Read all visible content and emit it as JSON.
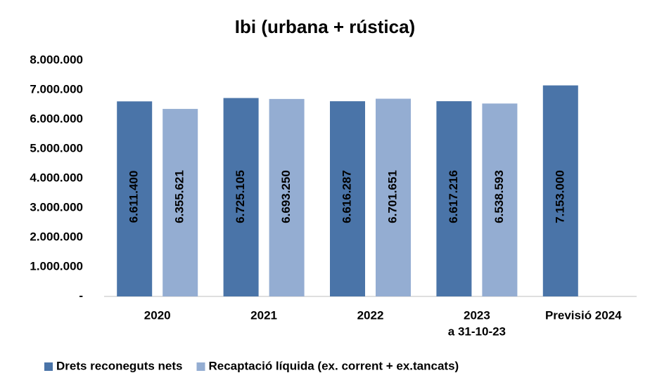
{
  "chart_data": {
    "type": "bar",
    "title": "Ibi (urbana + rústica)",
    "categories": [
      "2020",
      "2021",
      "2022",
      [
        "2023",
        "a 31-10-23"
      ],
      "Previsió 2024"
    ],
    "series": [
      {
        "name": "Drets reconeguts nets",
        "color": "#4a74a8",
        "label_color": "#ffffff",
        "values": [
          6611400,
          6725105,
          6616287,
          6617216,
          7153000
        ],
        "value_labels": [
          "6.611.400",
          "6.725.105",
          "6.616.287",
          "6.617.216",
          "7.153.000"
        ]
      },
      {
        "name": "Recaptació líquida (ex. corrent + ex.tancats)",
        "color": "#94add2",
        "label_color": "#000000",
        "values": [
          6355621,
          6693250,
          6701651,
          6538593,
          null
        ],
        "value_labels": [
          "6.355.621",
          "6.693.250",
          "6.701.651",
          "6.538.593",
          null
        ]
      }
    ],
    "ylim": [
      0,
      8000000
    ],
    "yticks": [
      {
        "value": 0,
        "label": "-"
      },
      {
        "value": 1000000,
        "label": "1.000.000"
      },
      {
        "value": 2000000,
        "label": "2.000.000"
      },
      {
        "value": 3000000,
        "label": "3.000.000"
      },
      {
        "value": 4000000,
        "label": "4.000.000"
      },
      {
        "value": 5000000,
        "label": "5.000.000"
      },
      {
        "value": 6000000,
        "label": "6.000.000"
      },
      {
        "value": 7000000,
        "label": "7.000.000"
      },
      {
        "value": 8000000,
        "label": "8.000.000"
      }
    ],
    "grid": false,
    "legend": "bottom"
  }
}
